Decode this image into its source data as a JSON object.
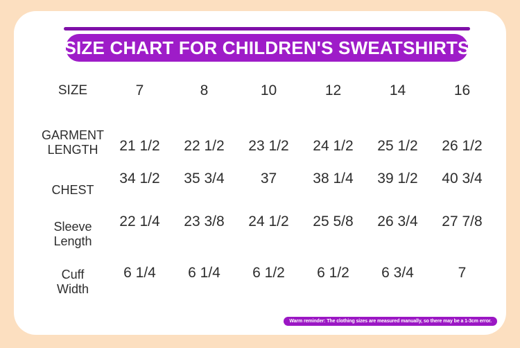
{
  "title": "SIZE CHART FOR CHILDREN'S SWEATSHIRTS",
  "colors": {
    "background_peach": "#FCDFC0",
    "card_white": "#FFFFFF",
    "banner_purple": "#9E1CC8",
    "topbar_purple": "#7F10A8",
    "reminder_purple": "#9B17C4",
    "text_dark": "#2D2D2D"
  },
  "table": {
    "header": {
      "label": "SIZE",
      "sizes": [
        "7",
        "8",
        "10",
        "12",
        "14",
        "16"
      ]
    },
    "rows": [
      {
        "label": "GARMENT LENGTH",
        "values": [
          "21 1/2",
          "22 1/2",
          "23 1/2",
          "24 1/2",
          "25 1/2",
          "26 1/2"
        ]
      },
      {
        "label": "CHEST",
        "values": [
          "34 1/2",
          "35 3/4",
          "37",
          "38 1/4",
          "39 1/2",
          "40 3/4"
        ]
      },
      {
        "label": "Sleeve Length",
        "values": [
          "22 1/4",
          "23 3/8",
          "24 1/2",
          "25 5/8",
          "26 3/4",
          "27 7/8"
        ]
      },
      {
        "label": "Cuff Width",
        "values": [
          "6 1/4",
          "6 1/4",
          "6 1/2",
          "6 1/2",
          "6 3/4",
          "7"
        ]
      }
    ]
  },
  "footer_note": "Warm reminder: The clothing sizes are measured manually, so there may be a 1-3cm error."
}
